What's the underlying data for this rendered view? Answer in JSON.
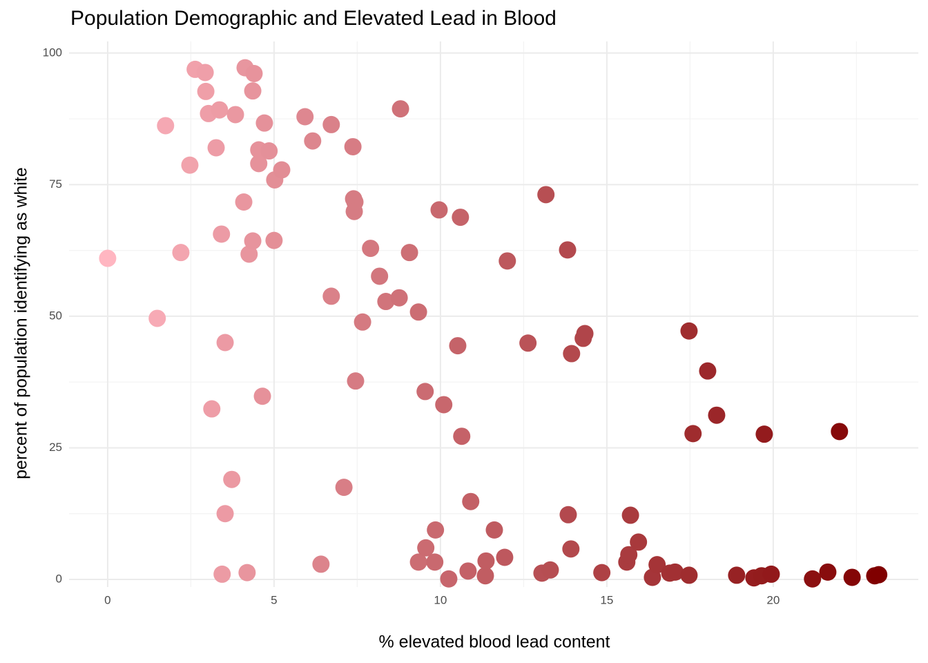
{
  "chart_data": {
    "type": "scatter",
    "title": "Population Demographic and Elevated Lead in Blood",
    "x_label": "% elevated blood lead content",
    "y_label": "percent of population identifying as white",
    "x": [
      0,
      1.49,
      1.74,
      2.2,
      2.47,
      2.63,
      2.93,
      2.95,
      3.03,
      3.13,
      3.26,
      3.36,
      3.42,
      3.44,
      3.53,
      3.53,
      3.73,
      3.84,
      4.09,
      4.13,
      4.19,
      4.25,
      4.36,
      4.36,
      4.4,
      4.54,
      4.54,
      4.65,
      4.71,
      4.85,
      5.0,
      5.02,
      5.23,
      5.93,
      6.16,
      6.41,
      6.72,
      6.72,
      7.1,
      7.37,
      7.39,
      7.43,
      7.41,
      7.45,
      7.66,
      7.9,
      8.17,
      8.36,
      8.76,
      8.8,
      9.07,
      9.34,
      9.34,
      9.54,
      9.56,
      9.83,
      9.85,
      9.96,
      10.1,
      10.25,
      10.52,
      10.6,
      10.64,
      10.83,
      10.91,
      11.35,
      11.37,
      11.62,
      11.93,
      12.01,
      12.63,
      13.05,
      13.17,
      13.3,
      13.82,
      13.84,
      13.92,
      13.94,
      14.29,
      14.34,
      14.85,
      15.6,
      15.66,
      15.71,
      15.95,
      16.37,
      16.51,
      16.89,
      17.05,
      17.47,
      17.47,
      17.59,
      18.03,
      18.3,
      18.9,
      19.42,
      19.65,
      19.73,
      19.94,
      21.18,
      21.64,
      21.99,
      22.37,
      23.05,
      23.17
    ],
    "values": [
      61.0,
      49.6,
      86.2,
      62.1,
      78.7,
      96.9,
      96.3,
      92.7,
      88.5,
      32.4,
      82.0,
      89.2,
      65.6,
      1.0,
      45.0,
      12.5,
      19.0,
      88.3,
      71.7,
      97.2,
      1.3,
      61.8,
      64.3,
      92.8,
      96.1,
      81.6,
      79.0,
      34.8,
      86.7,
      81.4,
      64.4,
      75.9,
      77.8,
      87.9,
      83.3,
      2.9,
      86.4,
      53.8,
      17.5,
      82.2,
      72.3,
      71.7,
      69.9,
      37.7,
      48.9,
      62.9,
      57.6,
      52.8,
      53.5,
      89.4,
      62.1,
      50.8,
      3.3,
      35.7,
      6.0,
      3.3,
      9.4,
      70.2,
      33.2,
      0.1,
      44.4,
      68.8,
      27.2,
      1.6,
      14.8,
      0.7,
      3.5,
      9.4,
      4.2,
      60.5,
      44.9,
      1.2,
      73.1,
      1.8,
      62.6,
      12.3,
      5.8,
      42.9,
      45.8,
      46.7,
      1.3,
      3.3,
      4.7,
      12.2,
      7.1,
      0.4,
      2.8,
      1.2,
      1.4,
      47.2,
      0.8,
      27.7,
      39.6,
      31.2,
      0.8,
      0.3,
      0.7,
      27.6,
      1.0,
      0.1,
      1.4,
      28.1,
      0.4,
      0.7,
      0.9
    ],
    "color_low": "#ffb6c1",
    "color_high": "#800000",
    "xlim": [
      -1.16,
      24.36
    ],
    "ylim": [
      -1.44,
      102.2
    ],
    "xticks": [
      0,
      5,
      10,
      15,
      20
    ],
    "yticks": [
      0,
      25,
      50,
      75,
      100
    ],
    "grid": true
  }
}
